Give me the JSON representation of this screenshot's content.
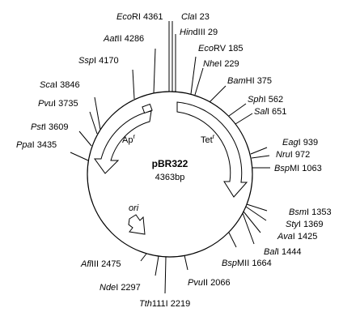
{
  "plasmid": {
    "name": "pBR322",
    "size_label": "4363bp"
  },
  "genes": {
    "ampicillin": {
      "base": "Ap",
      "sup": "r"
    },
    "tetracycline": {
      "base": "Tet",
      "sup": "r"
    },
    "origin": "ori"
  },
  "sites": [
    {
      "id": "ecori",
      "enzyme_italic": "Eco",
      "enzyme_rest": "RI",
      "position": "4361"
    },
    {
      "id": "clai",
      "enzyme_italic": "Cla",
      "enzyme_rest": "I",
      "position": "23"
    },
    {
      "id": "hindiii",
      "enzyme_italic": "Hin",
      "enzyme_rest": "dIII",
      "position": "29"
    },
    {
      "id": "ecorv",
      "enzyme_italic": "Eco",
      "enzyme_rest": "RV",
      "position": "185"
    },
    {
      "id": "nhei",
      "enzyme_italic": "Nhe",
      "enzyme_rest": "I",
      "position": "229"
    },
    {
      "id": "bamhi",
      "enzyme_italic": "Bam",
      "enzyme_rest": "HI",
      "position": "375"
    },
    {
      "id": "sphi",
      "enzyme_italic": "Sph",
      "enzyme_rest": "I",
      "position": "562"
    },
    {
      "id": "sali",
      "enzyme_italic": "Sal",
      "enzyme_rest": "I",
      "position": "651"
    },
    {
      "id": "eagi",
      "enzyme_italic": "Eag",
      "enzyme_rest": "I",
      "position": "939"
    },
    {
      "id": "nrui",
      "enzyme_italic": "Nru",
      "enzyme_rest": "I",
      "position": "972"
    },
    {
      "id": "bspmi",
      "enzyme_italic": "Bsp",
      "enzyme_rest": "MI",
      "position": "1063"
    },
    {
      "id": "bsmi",
      "enzyme_italic": "Bsm",
      "enzyme_rest": "I",
      "position": "1353"
    },
    {
      "id": "styi",
      "enzyme_italic": "Sty",
      "enzyme_rest": "I",
      "position": "1369"
    },
    {
      "id": "avai",
      "enzyme_italic": "Ava",
      "enzyme_rest": "I",
      "position": "1425"
    },
    {
      "id": "bali",
      "enzyme_italic": "Bal",
      "enzyme_rest": "I",
      "position": "1444"
    },
    {
      "id": "bspmii",
      "enzyme_italic": "Bsp",
      "enzyme_rest": "MII",
      "position": "1664"
    },
    {
      "id": "pvuii",
      "enzyme_italic": "Pvu",
      "enzyme_rest": "II",
      "position": "2066"
    },
    {
      "id": "tth111i",
      "enzyme_italic": "Tth",
      "enzyme_rest": "111I",
      "position": "2219"
    },
    {
      "id": "ndei",
      "enzyme_italic": "Nde",
      "enzyme_rest": "I",
      "position": "2297"
    },
    {
      "id": "afliii",
      "enzyme_italic": "Afl",
      "enzyme_rest": "III",
      "position": "2475"
    },
    {
      "id": "ppai",
      "enzyme_italic": "Ppa",
      "enzyme_rest": "I",
      "position": "3435"
    },
    {
      "id": "psti",
      "enzyme_italic": "Pst",
      "enzyme_rest": "I",
      "position": "3609"
    },
    {
      "id": "pvui",
      "enzyme_italic": "Pvu",
      "enzyme_rest": "I",
      "position": "3735"
    },
    {
      "id": "scai",
      "enzyme_italic": "Sca",
      "enzyme_rest": "I",
      "position": "3846"
    },
    {
      "id": "sspi",
      "enzyme_italic": "Ssp",
      "enzyme_rest": "I",
      "position": "4170"
    },
    {
      "id": "aatii",
      "enzyme_italic": "Aat",
      "enzyme_rest": "II",
      "position": "4286"
    }
  ]
}
